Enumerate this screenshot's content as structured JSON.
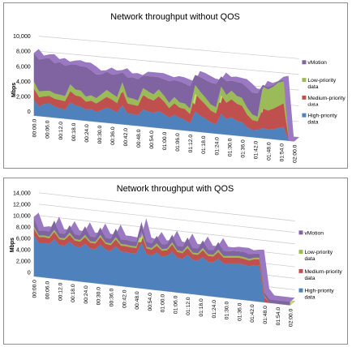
{
  "chart_data": [
    {
      "type": "area",
      "stacked": true,
      "style": "3d",
      "title": "Network throughput without QOS",
      "xlabel": "",
      "ylabel": "Mbps",
      "ylim": [
        0,
        10000
      ],
      "y_ticks": [
        "0",
        "2,000",
        "4,000",
        "6,000",
        "8,000",
        "10,000"
      ],
      "x_ticks": [
        "00:00.0",
        "00:06.0",
        "00:12.0",
        "00:18.0",
        "00:24.0",
        "00:30.0",
        "00:36.0",
        "00:42.0",
        "00:48.0",
        "00:54.0",
        "01:00.0",
        "01:06.0",
        "01:12.0",
        "01:18.0",
        "01:24.0",
        "01:30.0",
        "01:36.0",
        "01:42.0",
        "01:48.0",
        "01:54.0",
        "02:00.0"
      ],
      "grid": true,
      "legend": "right",
      "series": [
        {
          "name": "High-priority data",
          "color": "#4f81bd",
          "values": [
            2100,
            1300,
            1700,
            1800,
            1500,
            1300,
            1200,
            2200,
            1900,
            1800,
            1500,
            1600,
            1300,
            1600,
            2000,
            1800,
            1500,
            2500,
            1500,
            1500,
            1400,
            2200,
            2000,
            1900,
            2200,
            1900,
            1500,
            1900,
            1600,
            1400,
            1000,
            2600,
            2100,
            1800,
            1400,
            1200,
            2600,
            2000,
            2300,
            1900,
            1800,
            1200,
            900,
            1000,
            1300,
            1200,
            1300,
            1500,
            1700,
            0,
            0
          ]
        },
        {
          "name": "Medium-priority data",
          "color": "#c0504d",
          "values": [
            1500,
            1200,
            1000,
            1000,
            1000,
            1100,
            1100,
            1500,
            1300,
            1300,
            1000,
            1100,
            1100,
            1300,
            1400,
            1300,
            1200,
            2000,
            1300,
            1200,
            1200,
            1900,
            1700,
            1600,
            1900,
            1600,
            1200,
            1500,
            1300,
            1400,
            1200,
            2300,
            2100,
            1800,
            1500,
            1400,
            2400,
            2100,
            2300,
            2200,
            2100,
            1600,
            1300,
            1100,
            2500,
            2400,
            2600,
            2800,
            3000,
            0,
            0
          ]
        },
        {
          "name": "Low-priority data",
          "color": "#9bbb59",
          "values": [
            900,
            800,
            700,
            700,
            700,
            700,
            700,
            900,
            800,
            800,
            700,
            700,
            700,
            800,
            900,
            800,
            800,
            1000,
            800,
            800,
            700,
            900,
            900,
            800,
            900,
            800,
            700,
            800,
            700,
            700,
            700,
            1100,
            1000,
            900,
            800,
            800,
            1100,
            1000,
            1100,
            1000,
            1000,
            900,
            700,
            600,
            2800,
            2700,
            2800,
            3000,
            2800,
            0,
            0
          ]
        },
        {
          "name": "vMotion",
          "color": "#8064a2",
          "values": [
            3800,
            4200,
            4300,
            4300,
            4000,
            4300,
            4000,
            2600,
            3300,
            3200,
            3900,
            3300,
            3100,
            2600,
            2400,
            2500,
            3000,
            1300,
            2600,
            2800,
            2800,
            1600,
            2000,
            2300,
            1600,
            2100,
            2800,
            2200,
            2700,
            2600,
            2900,
            1300,
            1900,
            2300,
            2800,
            3000,
            1300,
            1800,
            1300,
            1800,
            1900,
            2600,
            2800,
            3000,
            200,
            300,
            200,
            200,
            200,
            0,
            0
          ]
        }
      ]
    },
    {
      "type": "area",
      "stacked": true,
      "style": "3d",
      "title": "Network throughput with QOS",
      "xlabel": "",
      "ylabel": "Mbps",
      "ylim": [
        0,
        14000
      ],
      "y_ticks": [
        "0",
        "2,000",
        "4,000",
        "6,000",
        "8,000",
        "10,000",
        "12,000",
        "14,000"
      ],
      "x_ticks": [
        "00:00.0",
        "00:06.0",
        "00:12.0",
        "00:18.0",
        "00:24.0",
        "00:30.0",
        "00:36.0",
        "00:42.0",
        "00:48.0",
        "00:54.0",
        "01:00.0",
        "01:06.0",
        "01:12.0",
        "01:18.0",
        "01:24.0",
        "01:30.0",
        "01:36.0",
        "01:42.0",
        "01:48.0",
        "01:54.0",
        "02:00.0"
      ],
      "grid": true,
      "legend": "right",
      "series": [
        {
          "name": "High-priority data",
          "color": "#4f81bd",
          "values": [
            7200,
            6000,
            6100,
            6000,
            6900,
            6000,
            6000,
            6800,
            6100,
            6000,
            6700,
            6000,
            6000,
            6900,
            6100,
            6000,
            6900,
            6100,
            6100,
            6000,
            6000,
            8000,
            6100,
            6000,
            6600,
            6000,
            6200,
            7000,
            6100,
            6000,
            6800,
            6000,
            6000,
            6700,
            6000,
            6000,
            6700,
            6000,
            6100,
            6200,
            6300,
            6200,
            6000,
            6300,
            6400,
            0,
            0,
            0,
            0,
            0,
            0
          ]
        },
        {
          "name": "Medium-priority data",
          "color": "#c0504d",
          "values": [
            1200,
            1000,
            1000,
            1000,
            1300,
            1000,
            1000,
            1200,
            1000,
            1000,
            1200,
            1000,
            1000,
            1300,
            1000,
            1000,
            1200,
            1000,
            1000,
            1000,
            1000,
            1600,
            1000,
            1000,
            1200,
            1000,
            1000,
            1300,
            1000,
            1000,
            1200,
            1000,
            1000,
            1200,
            1000,
            1000,
            1200,
            1000,
            1000,
            1000,
            1000,
            1000,
            1000,
            1000,
            1000,
            900,
            0,
            0,
            0,
            0,
            0
          ]
        },
        {
          "name": "Low-priority data",
          "color": "#9bbb59",
          "values": [
            400,
            300,
            300,
            300,
            400,
            300,
            300,
            400,
            300,
            300,
            400,
            300,
            300,
            400,
            300,
            300,
            400,
            300,
            300,
            300,
            300,
            500,
            300,
            300,
            400,
            300,
            300,
            400,
            300,
            300,
            400,
            300,
            300,
            400,
            300,
            300,
            400,
            300,
            300,
            300,
            300,
            300,
            300,
            300,
            300,
            200,
            0,
            0,
            0,
            0,
            0
          ]
        },
        {
          "name": "vMotion",
          "color": "#8064a2",
          "values": [
            1700,
            800,
            900,
            900,
            1600,
            800,
            800,
            1300,
            800,
            800,
            1500,
            800,
            800,
            1300,
            800,
            800,
            1500,
            800,
            800,
            800,
            800,
            1500,
            900,
            800,
            1300,
            800,
            800,
            1300,
            800,
            800,
            1400,
            800,
            800,
            1300,
            800,
            800,
            1300,
            900,
            800,
            900,
            800,
            900,
            800,
            700,
            700,
            600,
            600,
            600,
            600,
            600,
            600
          ]
        }
      ]
    }
  ]
}
